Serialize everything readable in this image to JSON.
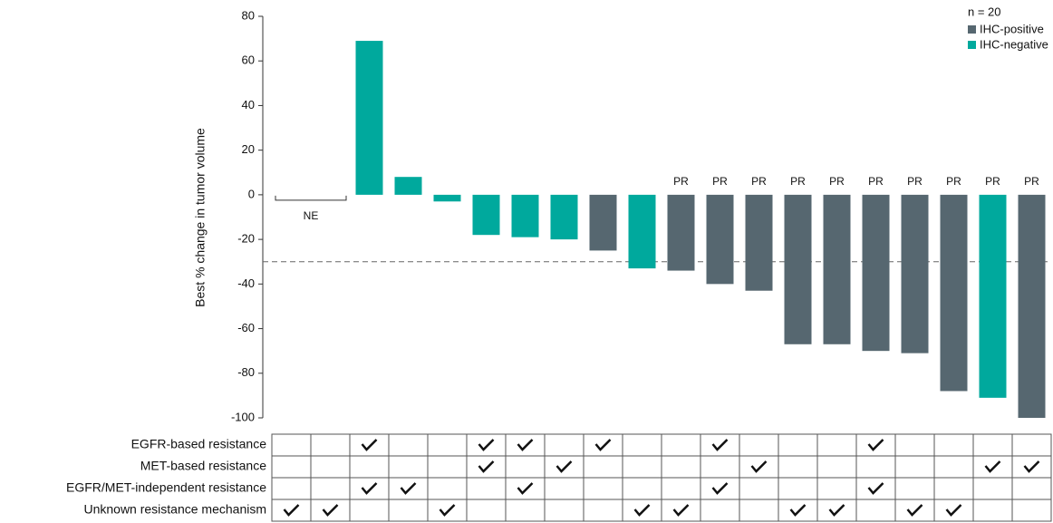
{
  "chart_data": {
    "type": "bar",
    "y_label": "Best % change in tumor volume",
    "legend_title": "n = 20",
    "legend_position": "top-right",
    "ylim": [
      -100,
      80
    ],
    "yticks": [
      80,
      60,
      40,
      20,
      0,
      -20,
      -40,
      -60,
      -80,
      -100
    ],
    "reference_line": -30,
    "series": [
      {
        "name": "IHC-positive",
        "color": "#566770",
        "values": [
          null,
          null,
          null,
          null,
          null,
          null,
          null,
          null,
          -25,
          null,
          -34,
          -40,
          -43,
          -67,
          -67,
          -70,
          -71,
          -88,
          null,
          -100
        ]
      },
      {
        "name": "IHC-negative",
        "color": "#00a99d",
        "values": [
          null,
          null,
          69,
          8,
          -3,
          -18,
          -19,
          -20,
          null,
          -33,
          null,
          null,
          null,
          null,
          null,
          null,
          null,
          null,
          -91,
          null
        ]
      }
    ],
    "bar_labels": [
      null,
      null,
      null,
      null,
      null,
      null,
      null,
      null,
      null,
      null,
      "PR",
      "PR",
      "PR",
      "PR",
      "PR",
      "PR",
      "PR",
      "PR",
      "PR",
      "PR"
    ],
    "not_evaluable_label": "NE",
    "table": [
      {
        "label": "EGFR-based resistance",
        "values": [
          0,
          0,
          1,
          0,
          0,
          1,
          1,
          0,
          1,
          0,
          0,
          1,
          0,
          0,
          0,
          1,
          0,
          0,
          0,
          0
        ]
      },
      {
        "label": "MET-based resistance",
        "values": [
          0,
          0,
          0,
          0,
          0,
          1,
          0,
          1,
          0,
          0,
          0,
          0,
          1,
          0,
          0,
          0,
          0,
          0,
          1,
          1
        ]
      },
      {
        "label": "EGFR/MET-independent resistance",
        "values": [
          0,
          0,
          1,
          1,
          0,
          0,
          1,
          0,
          0,
          0,
          0,
          1,
          0,
          0,
          0,
          1,
          0,
          0,
          0,
          0
        ]
      },
      {
        "label": "Unknown resistance mechanism",
        "values": [
          1,
          1,
          0,
          0,
          1,
          0,
          0,
          0,
          0,
          1,
          1,
          0,
          0,
          1,
          1,
          0,
          1,
          1,
          0,
          0
        ]
      }
    ]
  }
}
